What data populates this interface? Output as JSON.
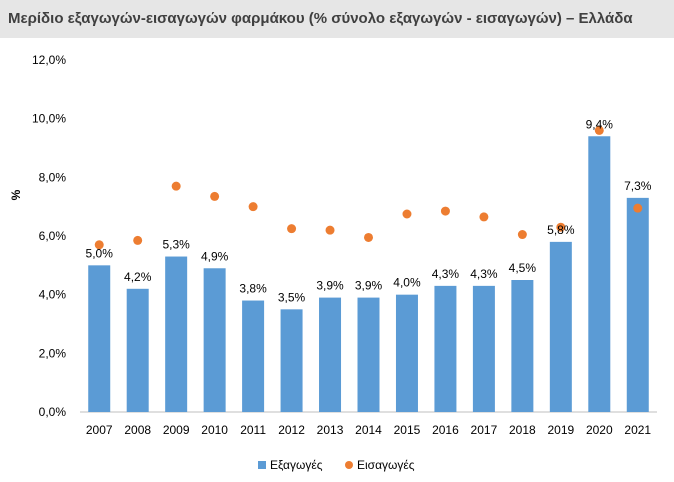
{
  "header": {
    "title": "Μερίδιο εξαγωγών-εισαγωγών φαρμάκου (% σύνολο εξαγωγών - εισαγωγών) – Ελλάδα"
  },
  "colors": {
    "exports": "#5b9bd5",
    "imports": "#ed7d31",
    "axis": "#bfbfbf",
    "text": "#000000"
  },
  "chart_data": {
    "type": "bar",
    "title": "Μερίδιο εξαγωγών-εισαγωγών φαρμάκου (% σύνολο εξαγωγών - εισαγωγών) – Ελλάδα",
    "xlabel": "",
    "ylabel": "%",
    "ylim": [
      0,
      12
    ],
    "yticks": [
      "0,0%",
      "2,0%",
      "4,0%",
      "6,0%",
      "8,0%",
      "10,0%",
      "12,0%"
    ],
    "categories": [
      "2007",
      "2008",
      "2009",
      "2010",
      "2011",
      "2012",
      "2013",
      "2014",
      "2015",
      "2016",
      "2017",
      "2018",
      "2019",
      "2020",
      "2021"
    ],
    "series": [
      {
        "name": "Εξαγωγές",
        "kind": "bar",
        "values": [
          5.0,
          4.2,
          5.3,
          4.9,
          3.8,
          3.5,
          3.9,
          3.9,
          4.0,
          4.3,
          4.3,
          4.5,
          5.8,
          9.4,
          7.3
        ],
        "labels": [
          "5,0%",
          "4,2%",
          "5,3%",
          "4,9%",
          "3,8%",
          "3,5%",
          "3,9%",
          "3,9%",
          "4,0%",
          "4,3%",
          "4,3%",
          "4,5%",
          "5,8%",
          "9,4%",
          "7,3%"
        ]
      },
      {
        "name": "Εισαγωγές",
        "kind": "scatter",
        "values": [
          5.7,
          5.85,
          7.7,
          7.35,
          7.0,
          6.25,
          6.2,
          5.95,
          6.75,
          6.85,
          6.65,
          6.05,
          6.3,
          9.6,
          6.95
        ]
      }
    ],
    "legend": "bottom"
  }
}
